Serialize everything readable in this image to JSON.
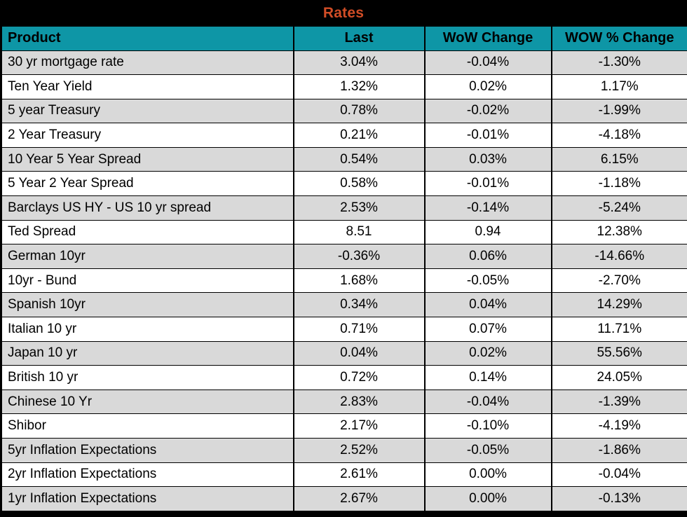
{
  "title": "Rates",
  "colors": {
    "title_color": "#D14D26",
    "header_bg": "#0E96A6",
    "header_text": "#000000",
    "stripe_bg": "#D9D9D9",
    "row_bg": "#FFFFFF",
    "frame_bg": "#000000"
  },
  "chart_data": {
    "type": "table",
    "title": "Rates",
    "columns": [
      "Product",
      "Last",
      "WoW Change",
      "WOW % Change"
    ],
    "rows": [
      [
        "30 yr mortgage rate",
        "3.04%",
        "-0.04%",
        "-1.30%"
      ],
      [
        "Ten Year Yield",
        "1.32%",
        "0.02%",
        "1.17%"
      ],
      [
        "5 year Treasury",
        "0.78%",
        "-0.02%",
        "-1.99%"
      ],
      [
        "2 Year Treasury",
        "0.21%",
        "-0.01%",
        "-4.18%"
      ],
      [
        "10 Year 5 Year Spread",
        "0.54%",
        "0.03%",
        "6.15%"
      ],
      [
        "5 Year 2 Year Spread",
        "0.58%",
        "-0.01%",
        "-1.18%"
      ],
      [
        "Barclays US HY - US 10 yr spread",
        "2.53%",
        "-0.14%",
        "-5.24%"
      ],
      [
        "Ted Spread",
        "8.51",
        "0.94",
        "12.38%"
      ],
      [
        "German 10yr",
        "-0.36%",
        "0.06%",
        "-14.66%"
      ],
      [
        "10yr - Bund",
        "1.68%",
        "-0.05%",
        "-2.70%"
      ],
      [
        "Spanish 10yr",
        "0.34%",
        "0.04%",
        "14.29%"
      ],
      [
        "Italian 10 yr",
        "0.71%",
        "0.07%",
        "11.71%"
      ],
      [
        "Japan 10 yr",
        "0.04%",
        "0.02%",
        "55.56%"
      ],
      [
        "British 10 yr",
        "0.72%",
        "0.14%",
        "24.05%"
      ],
      [
        "Chinese 10 Yr",
        "2.83%",
        "-0.04%",
        "-1.39%"
      ],
      [
        "Shibor",
        "2.17%",
        "-0.10%",
        "-4.19%"
      ],
      [
        "5yr Inflation Expectations",
        "2.52%",
        "-0.05%",
        "-1.86%"
      ],
      [
        "2yr Inflation Expectations",
        "2.61%",
        "0.00%",
        "-0.04%"
      ],
      [
        "1yr Inflation Expectations",
        "2.67%",
        "0.00%",
        "-0.13%"
      ]
    ]
  }
}
